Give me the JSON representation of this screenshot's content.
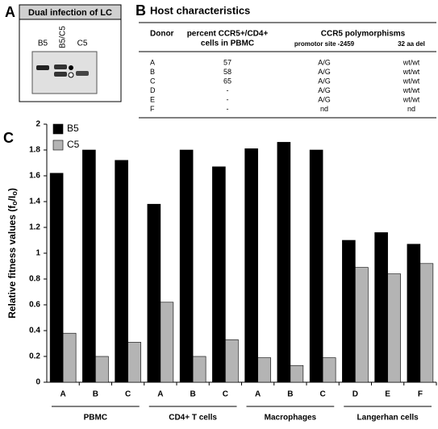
{
  "panel_a": {
    "label": "A",
    "title": "Dual infection of LC",
    "lanes": [
      "B5",
      "B5/C5",
      "C5"
    ]
  },
  "panel_b": {
    "label": "B",
    "title": "Host characteristics",
    "table": {
      "headers": [
        "Donor",
        "percent CCR5+/CD4+",
        "cells in PBMC",
        "CCR5 polymorphisms"
      ],
      "subheaders": [
        "promotor site -2459",
        "32 aa del"
      ],
      "rows": [
        [
          "A",
          57,
          "A/G",
          "wt/wt"
        ],
        [
          "B",
          58,
          "A/G",
          "wt/wt"
        ],
        [
          "C",
          65,
          "A/G",
          "wt/wt"
        ],
        [
          "D",
          "-",
          "A/G",
          "wt/wt"
        ],
        [
          "E",
          "-",
          "A/G",
          "wt/wt"
        ],
        [
          "F",
          "-",
          "nd",
          "nd"
        ]
      ]
    }
  },
  "chart_data": {
    "type": "bar",
    "label": "C",
    "ylabel_parts": [
      "Relative fitness values (f",
      "o",
      "/I",
      "o",
      ")"
    ],
    "ylim": [
      0,
      2
    ],
    "yticks": [
      0,
      0.2,
      0.4,
      0.6,
      0.8,
      1,
      1.2,
      1.4,
      1.6,
      1.8,
      2
    ],
    "groups": [
      {
        "name": "PBMC",
        "categories": [
          "A",
          "B",
          "C"
        ]
      },
      {
        "name": "CD4+ T cells",
        "categories": [
          "A",
          "B",
          "C"
        ]
      },
      {
        "name": "Macrophages",
        "categories": [
          "A",
          "B",
          "C"
        ]
      },
      {
        "name": "Langerhan cells",
        "categories": [
          "D",
          "E",
          "F"
        ]
      }
    ],
    "series": [
      {
        "name": "B5",
        "color": "#000000",
        "values": [
          1.62,
          1.8,
          1.72,
          1.38,
          1.8,
          1.67,
          1.81,
          1.86,
          1.8,
          1.1,
          1.16,
          1.07
        ]
      },
      {
        "name": "C5",
        "color": "#b4b4b4",
        "values": [
          0.38,
          0.2,
          0.31,
          0.62,
          0.2,
          0.33,
          0.19,
          0.13,
          0.19,
          0.89,
          0.84,
          0.92
        ]
      }
    ],
    "legend": "top-left"
  }
}
